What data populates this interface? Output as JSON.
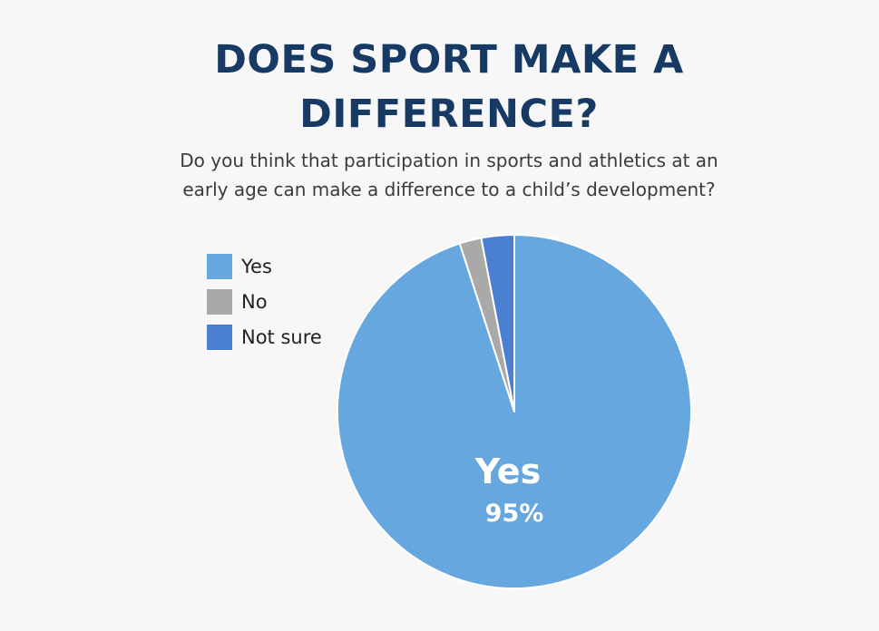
{
  "header": {
    "title_line1": "DOES SPORT MAKE A",
    "title_line2": "DIFFERENCE?",
    "subtitle_line1": "Do you think that participation in sports and athletics at an",
    "subtitle_line2": "early age can make a difference to a child’s development?"
  },
  "chart_data": {
    "type": "pie",
    "title": "DOES SPORT MAKE A DIFFERENCE?",
    "subtitle": "Do you think that participation in sports and athletics at an early age can make a difference to a child’s development?",
    "legend_position": "top-left",
    "slices": [
      {
        "label": "Yes",
        "value": 95,
        "color": "#65a7de",
        "data_label_name": "Yes",
        "data_label_value": "95%"
      },
      {
        "label": "No",
        "value": 2,
        "color": "#a9a9a9"
      },
      {
        "label": "Not sure",
        "value": 3,
        "color": "#4b7fd2"
      }
    ]
  }
}
